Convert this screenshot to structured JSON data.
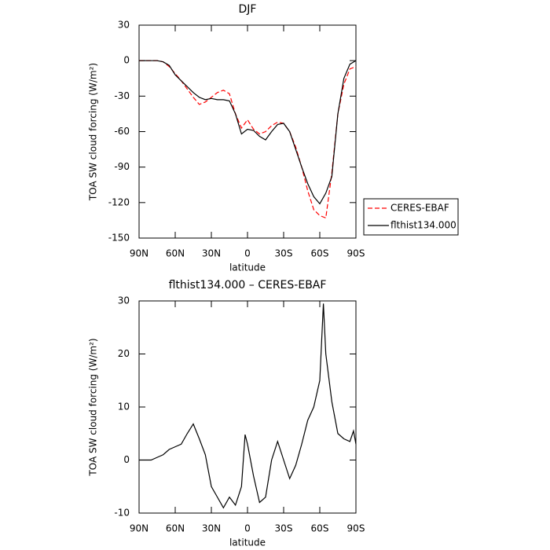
{
  "chart_data": [
    {
      "type": "line",
      "title": "DJF",
      "xlabel": "latitude",
      "ylabel": "TOA SW cloud forcing (W/m²)",
      "x": [
        90,
        85,
        80,
        75,
        70,
        65,
        60,
        55,
        50,
        45,
        40,
        35,
        30,
        25,
        20,
        15,
        10,
        5,
        0,
        -5,
        -10,
        -15,
        -20,
        -25,
        -30,
        -35,
        -40,
        -45,
        -50,
        -55,
        -60,
        -65,
        -70,
        -75,
        -80,
        -85,
        -90
      ],
      "series": [
        {
          "name": "CERES-EBAF",
          "color": "#ff0000",
          "dashed": true,
          "values": [
            0,
            0,
            0,
            0,
            -1,
            -5,
            -11,
            -17,
            -24,
            -31,
            -37,
            -35,
            -31,
            -27,
            -25,
            -28,
            -45,
            -57,
            -50,
            -58,
            -62,
            -60,
            -55,
            -52,
            -53,
            -60,
            -73,
            -90,
            -110,
            -126,
            -131,
            -133,
            -95,
            -45,
            -20,
            -7,
            -5
          ]
        },
        {
          "name": "flthist134.000",
          "color": "#000000",
          "dashed": false,
          "values": [
            0,
            0,
            0,
            0,
            -1,
            -4,
            -12,
            -17,
            -22,
            -27,
            -31,
            -33,
            -32,
            -33,
            -33,
            -34,
            -45,
            -62,
            -58,
            -59,
            -64,
            -67,
            -60,
            -54,
            -53,
            -60,
            -75,
            -90,
            -104,
            -115,
            -121,
            -112,
            -98,
            -45,
            -15,
            -3,
            0
          ]
        }
      ],
      "xlim": [
        90,
        -90
      ],
      "xticks": [
        {
          "value": 90,
          "label": "90N"
        },
        {
          "value": 60,
          "label": "60N"
        },
        {
          "value": 30,
          "label": "30N"
        },
        0,
        {
          "value": -30,
          "label": "30S"
        },
        {
          "value": -60,
          "label": "60S"
        },
        {
          "value": -90,
          "label": "90S"
        }
      ],
      "ylim": [
        -150,
        30
      ],
      "yticks": [
        30,
        0,
        -30,
        -60,
        -90,
        -120,
        -150
      ],
      "grid": false,
      "legend": "right"
    },
    {
      "type": "line",
      "title": "flthist134.000 – CERES-EBAF",
      "xlabel": "latitude",
      "ylabel": "TOA SW cloud forcing (W/m²)",
      "x": [
        90,
        85,
        80,
        75,
        70,
        65,
        60,
        55,
        50,
        45,
        40,
        35,
        30,
        25,
        20,
        15,
        10,
        5,
        2,
        0,
        -5,
        -10,
        -15,
        -20,
        -25,
        -30,
        -35,
        -40,
        -45,
        -50,
        -55,
        -60,
        -63,
        -65,
        -70,
        -75,
        -80,
        -85,
        -88,
        -90
      ],
      "values": [
        0,
        0,
        0,
        0.5,
        1,
        2,
        2.5,
        3,
        5,
        6.8,
        4,
        1,
        -5,
        -7,
        -9,
        -7,
        -8.5,
        -5,
        4.8,
        3,
        -3,
        -8,
        -7,
        0,
        3.5,
        0,
        -3.5,
        -1,
        3,
        7.5,
        10,
        15,
        29.5,
        20,
        11,
        5,
        4,
        3.5,
        5.5,
        3
      ],
      "color": "#000000",
      "xlim": [
        90,
        -90
      ],
      "xticks": [
        {
          "value": 90,
          "label": "90N"
        },
        {
          "value": 60,
          "label": "60N"
        },
        {
          "value": 30,
          "label": "30N"
        },
        0,
        {
          "value": -30,
          "label": "30S"
        },
        {
          "value": -60,
          "label": "60S"
        },
        {
          "value": -90,
          "label": "90S"
        }
      ],
      "ylim": [
        -10,
        30
      ],
      "yticks": [
        30,
        20,
        10,
        0,
        -10
      ],
      "grid": false
    }
  ]
}
